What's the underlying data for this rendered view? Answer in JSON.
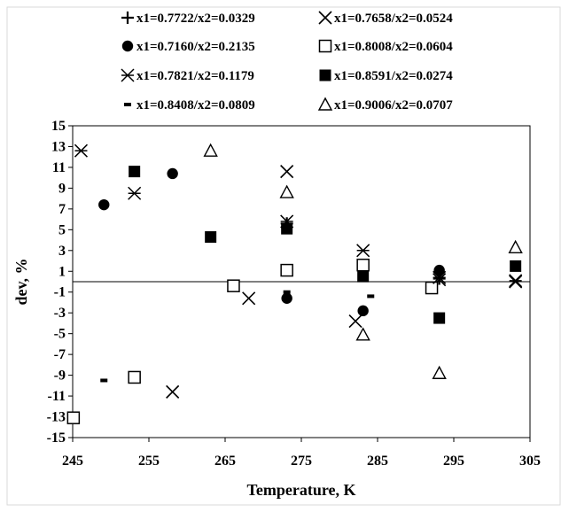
{
  "chart_data": {
    "type": "scatter",
    "xlabel": "Temperature, K",
    "ylabel": "dev, %",
    "xlim": [
      245,
      305
    ],
    "ylim": [
      -15,
      15
    ],
    "xticks": [
      245,
      255,
      265,
      275,
      285,
      295,
      305
    ],
    "yticks": [
      15,
      13,
      11,
      9,
      7,
      5,
      3,
      1,
      -1,
      -3,
      -5,
      -7,
      -9,
      -11,
      -13,
      -15
    ],
    "grid": false,
    "zero_line": true,
    "legend_position": "top",
    "series": [
      {
        "name": "x1=0.7722/x2=0.0329",
        "marker": "plus",
        "points": [
          [
            273.1,
            5.6
          ],
          [
            293.1,
            0.3
          ]
        ]
      },
      {
        "name": "x1=0.7658/x2=0.0524",
        "marker": "x",
        "points": [
          [
            258.1,
            -10.6
          ],
          [
            268.1,
            -1.6
          ],
          [
            273.1,
            10.6
          ],
          [
            282.1,
            -3.8
          ],
          [
            293.1,
            0.2
          ],
          [
            303.1,
            0.0
          ]
        ]
      },
      {
        "name": "x1=0.7160/x2=0.2135",
        "marker": "circle",
        "points": [
          [
            249.1,
            7.4
          ],
          [
            258.1,
            10.4
          ],
          [
            273.1,
            -1.6
          ],
          [
            283.1,
            -2.8
          ],
          [
            293.1,
            1.1
          ]
        ]
      },
      {
        "name": "x1=0.8008/x2=0.0604",
        "marker": "open-square",
        "points": [
          [
            245.1,
            -13.1
          ],
          [
            253.1,
            -9.2
          ],
          [
            266.1,
            -0.4
          ],
          [
            273.1,
            1.1
          ],
          [
            283.1,
            1.6
          ],
          [
            292.1,
            -0.6
          ]
        ]
      },
      {
        "name": "x1=0.7821/x2=0.1179",
        "marker": "asterisk",
        "points": [
          [
            246.1,
            12.6
          ],
          [
            253.1,
            8.5
          ],
          [
            273.1,
            5.8
          ],
          [
            283.1,
            3.0
          ],
          [
            293.1,
            0.4
          ],
          [
            303.1,
            0.1
          ]
        ]
      },
      {
        "name": "x1=0.8591/x2=0.0274",
        "marker": "filled-square",
        "points": [
          [
            253.1,
            10.6
          ],
          [
            263.1,
            4.3
          ],
          [
            273.1,
            5.1
          ],
          [
            283.1,
            0.5
          ],
          [
            293.1,
            -3.5
          ],
          [
            303.1,
            1.5
          ]
        ]
      },
      {
        "name": "x1=0.8408/x2=0.0809",
        "marker": "dash",
        "points": [
          [
            249.1,
            -9.5
          ],
          [
            273.1,
            -1.0
          ],
          [
            284.1,
            -1.4
          ]
        ]
      },
      {
        "name": "x1=0.9006/x2=0.0707",
        "marker": "open-triangle",
        "points": [
          [
            263.1,
            12.6
          ],
          [
            273.1,
            8.6
          ],
          [
            283.1,
            -5.1
          ],
          [
            293.1,
            -8.8
          ],
          [
            303.1,
            3.3
          ]
        ]
      }
    ]
  }
}
